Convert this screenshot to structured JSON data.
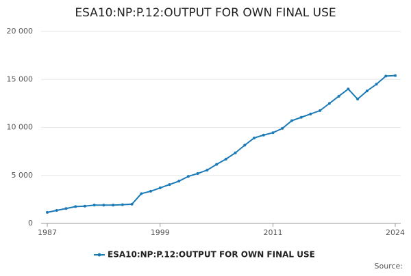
{
  "chart_data": {
    "type": "line",
    "title": "ESA10:NP:P.12:OUTPUT FOR OWN FINAL USE",
    "x": [
      1987,
      1988,
      1989,
      1990,
      1991,
      1992,
      1993,
      1994,
      1995,
      1996,
      1997,
      1998,
      1999,
      2000,
      2001,
      2002,
      2003,
      2004,
      2005,
      2006,
      2007,
      2008,
      2009,
      2010,
      2011,
      2012,
      2013,
      2014,
      2015,
      2016,
      2017,
      2018,
      2019,
      2020,
      2021,
      2022,
      2023,
      2024
    ],
    "series": [
      {
        "name": "ESA10:NP:P.12:OUTPUT FOR OWN FINAL USE",
        "color": "#1a7ab8",
        "values": [
          1150,
          1350,
          1550,
          1750,
          1800,
          1900,
          1900,
          1900,
          1950,
          2000,
          3100,
          3350,
          3700,
          4050,
          4400,
          4900,
          5200,
          5550,
          6150,
          6700,
          7350,
          8150,
          8900,
          9200,
          9450,
          9900,
          10700,
          11050,
          11400,
          11750,
          12500,
          13250,
          14000,
          12950,
          13800,
          14500,
          15350,
          15400
        ]
      }
    ],
    "xlim": [
      1987,
      2024
    ],
    "xticks": [
      1987,
      1999,
      2011,
      2024
    ],
    "ylim": [
      0,
      20000
    ],
    "yticks": [
      0,
      {
        "value": 5000,
        "label": "5 000"
      },
      {
        "value": 10000,
        "label": "10 000"
      },
      {
        "value": 15000,
        "label": "15 000"
      },
      {
        "value": 20000,
        "label": "20 000"
      }
    ],
    "grid": true,
    "legend": "bottom",
    "source": "Source:"
  }
}
